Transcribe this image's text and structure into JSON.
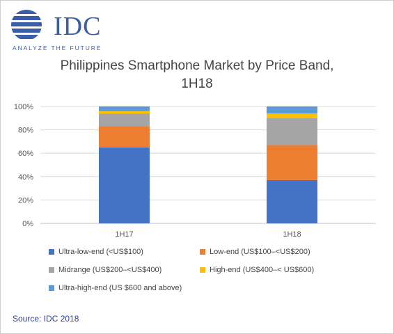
{
  "logo": {
    "name": "IDC",
    "tagline": "ANALYZE THE FUTURE"
  },
  "title": {
    "line1": "Philippines Smartphone Market by Price Band,",
    "line2": "1H18"
  },
  "chart_data": {
    "type": "bar",
    "stacked": true,
    "categories": [
      "1H17",
      "1H18"
    ],
    "series": [
      {
        "name": "Ultra-low-end (<US$100)",
        "color": "#4472c4",
        "values": [
          65,
          37
        ]
      },
      {
        "name": "Low-end (US$100–<US$200)",
        "color": "#ed7d31",
        "values": [
          18,
          30
        ]
      },
      {
        "name": "Midrange (US$200–<US$400)",
        "color": "#a5a5a5",
        "values": [
          11,
          23
        ]
      },
      {
        "name": "High-end (US$400–< US$600)",
        "color": "#ffc000",
        "values": [
          2,
          4
        ]
      },
      {
        "name": "Ultra-high-end (US $600 and above)",
        "color": "#5b9bd5",
        "values": [
          4,
          6
        ]
      }
    ],
    "yticks": [
      "0%",
      "20%",
      "40%",
      "60%",
      "80%",
      "100%"
    ],
    "ylim": [
      0,
      100
    ],
    "xlabel": "",
    "ylabel": "",
    "grid": true,
    "legend_position": "bottom"
  },
  "source": "Source: IDC 2018",
  "colors": {
    "brand": "#3a5ea8",
    "source_text": "#2d3f92"
  }
}
